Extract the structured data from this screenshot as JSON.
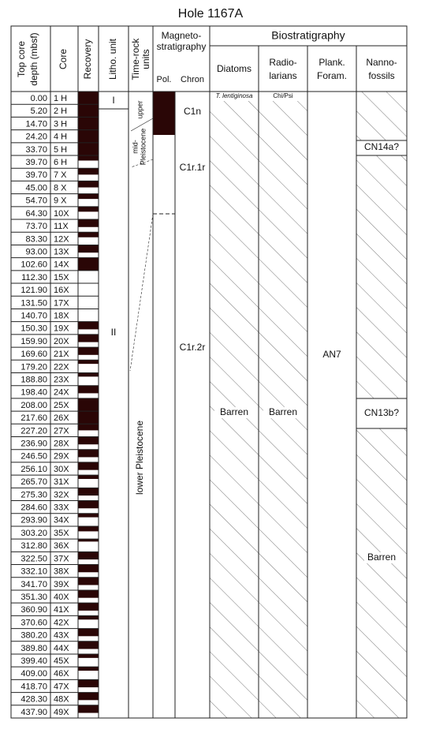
{
  "title": "Hole 1167A",
  "headers": {
    "depth": [
      "Top core",
      "depth (mbsf)"
    ],
    "core": "Core",
    "recovery": "Recovery",
    "litho": "Litho. unit",
    "time_rock": [
      "Time-rock",
      "units"
    ],
    "magneto": [
      "Magneto-",
      "stratigraphy"
    ],
    "pol": "Pol.",
    "chron": "Chron",
    "biostratigraphy": "Biostratigraphy",
    "diatoms": "Diatoms",
    "radiolarians": [
      "Radio-",
      "larians"
    ],
    "forams": [
      "Plank.",
      "Foram."
    ],
    "nannofossils": [
      "Nanno-",
      "fossils"
    ]
  },
  "rows": [
    [
      "0.00",
      "1 H"
    ],
    [
      "5.20",
      "2 H"
    ],
    [
      "14.70",
      "3 H"
    ],
    [
      "24.20",
      "4 H"
    ],
    [
      "33.70",
      "5 H"
    ],
    [
      "39.70",
      "6 H"
    ],
    [
      "39.70",
      "7 X"
    ],
    [
      "45.00",
      "8 X"
    ],
    [
      "54.70",
      "9 X"
    ],
    [
      "64.30",
      "10X"
    ],
    [
      "73.70",
      "11X"
    ],
    [
      "83.30",
      "12X"
    ],
    [
      "93.00",
      "13X"
    ],
    [
      "102.60",
      "14X"
    ],
    [
      "112.30",
      "15X"
    ],
    [
      "121.90",
      "16X"
    ],
    [
      "131.50",
      "17X"
    ],
    [
      "140.70",
      "18X"
    ],
    [
      "150.30",
      "19X"
    ],
    [
      "159.90",
      "20X"
    ],
    [
      "169.60",
      "21X"
    ],
    [
      "179.20",
      "22X"
    ],
    [
      "188.80",
      "23X"
    ],
    [
      "198.40",
      "24X"
    ],
    [
      "208.00",
      "25X"
    ],
    [
      "217.60",
      "26X"
    ],
    [
      "227.20",
      "27X"
    ],
    [
      "236.90",
      "28X"
    ],
    [
      "246.50",
      "29X"
    ],
    [
      "256.10",
      "30X"
    ],
    [
      "265.70",
      "31X"
    ],
    [
      "275.30",
      "32X"
    ],
    [
      "284.60",
      "33X"
    ],
    [
      "293.90",
      "34X"
    ],
    [
      "303.20",
      "35X"
    ],
    [
      "312.80",
      "36X"
    ],
    [
      "322.50",
      "37X"
    ],
    [
      "332.10",
      "38X"
    ],
    [
      "341.70",
      "39X"
    ],
    [
      "351.30",
      "40X"
    ],
    [
      "360.90",
      "41X"
    ],
    [
      "370.60",
      "42X"
    ],
    [
      "380.20",
      "43X"
    ],
    [
      "389.80",
      "44X"
    ],
    [
      "399.40",
      "45X"
    ],
    [
      "409.00",
      "46X"
    ],
    [
      "418.70",
      "47X"
    ],
    [
      "428.30",
      "48X"
    ],
    [
      "437.90",
      "49X"
    ]
  ],
  "recovery": [
    1,
    1,
    1,
    1,
    1,
    0.4,
    0.5,
    0.5,
    0.4,
    0.4,
    0.6,
    0.4,
    0.6,
    1,
    0,
    0,
    0,
    0,
    0.6,
    0.6,
    0.6,
    0.3,
    0.3,
    0.6,
    1,
    1,
    0.5,
    0.6,
    0.6,
    0.6,
    0.3,
    0.6,
    0.6,
    0.3,
    0.4,
    0.2,
    0.6,
    0.6,
    0.6,
    0.6,
    0.6,
    0.3,
    0.6,
    0.6,
    0.3,
    0.3,
    0.6,
    0.6,
    0.6
  ],
  "litho_units": [
    "I",
    "II"
  ],
  "time_rock": {
    "upper": "upper",
    "mid": [
      "mid-",
      "Pleistocene"
    ],
    "lower": "lower Pleistocene"
  },
  "chrons": [
    "C1n",
    "C1r.1r",
    "C1r.2r"
  ],
  "diatoms": {
    "zone": "T. lentiginosa",
    "barren": "Barren"
  },
  "radiolarians": {
    "zone": "Chi/Psi",
    "barren": "Barren"
  },
  "forams": {
    "zone": "AN7"
  },
  "nannofossils": {
    "zones": [
      "CN14a?",
      "CN13b?"
    ],
    "barren": "Barren"
  }
}
